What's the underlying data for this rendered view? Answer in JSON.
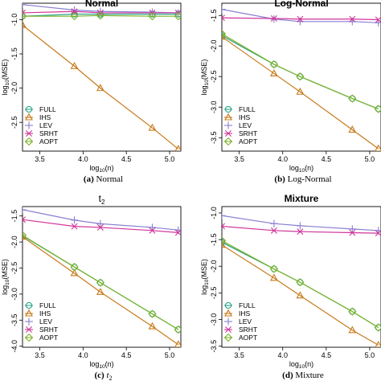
{
  "figure": {
    "methods": [
      "FULL",
      "IHS",
      "LEV",
      "SRHT",
      "AOPT"
    ],
    "colors": {
      "FULL": "#2aa58a",
      "IHS": "#c87a1a",
      "LEV": "#8a7fd0",
      "SRHT": "#d0359a",
      "AOPT": "#7cb22a"
    },
    "markers": {
      "FULL": "circle",
      "IHS": "triangle",
      "LEV": "plus",
      "SRHT": "cross",
      "AOPT": "diamond"
    }
  },
  "chart_data": [
    {
      "type": "line",
      "title": "Normal",
      "caption_label": "(a)",
      "caption_text": "Normal",
      "xlabel": "log10(n)",
      "ylabel": "log10(MSE)",
      "xlim": [
        3.3,
        5.13
      ],
      "ylim": [
        -2.92,
        -0.76
      ],
      "xticks": [
        3.5,
        4.0,
        4.5,
        5.0
      ],
      "yticks": [
        -1.0,
        -1.5,
        -2.0,
        -2.5
      ],
      "x": [
        3.3,
        3.9,
        4.2,
        4.8,
        5.1
      ],
      "series": [
        {
          "name": "FULL",
          "values": [
            -0.95,
            -0.92,
            -0.92,
            -0.92,
            -0.92
          ]
        },
        {
          "name": "IHS",
          "values": [
            -1.08,
            -1.68,
            -2.0,
            -2.58,
            -2.89
          ]
        },
        {
          "name": "LEV",
          "values": [
            -0.78,
            -0.86,
            -0.88,
            -0.89,
            -0.9
          ]
        },
        {
          "name": "SRHT",
          "values": [
            -0.9,
            -0.88,
            -0.9,
            -0.9,
            -0.9
          ]
        },
        {
          "name": "AOPT",
          "values": [
            -0.95,
            -0.95,
            -0.94,
            -0.95,
            -0.95
          ]
        }
      ]
    },
    {
      "type": "line",
      "title": "Log-Normal",
      "caption_label": "(b)",
      "caption_text": "Log-Normal",
      "xlabel": "log10(n)",
      "ylabel": "log10(MSE)",
      "xlim": [
        3.3,
        5.13
      ],
      "ylim": [
        -3.72,
        -1.3
      ],
      "xticks": [
        3.5,
        4.0,
        4.5,
        5.0
      ],
      "yticks": [
        -1.5,
        -2.0,
        -2.5,
        -3.0,
        -3.5
      ],
      "x": [
        3.3,
        3.9,
        4.2,
        4.8,
        5.1
      ],
      "series": [
        {
          "name": "FULL",
          "values": [
            -1.83,
            -2.3,
            -2.5,
            -2.86,
            -3.03
          ]
        },
        {
          "name": "IHS",
          "values": [
            -1.85,
            -2.45,
            -2.75,
            -3.37,
            -3.68
          ]
        },
        {
          "name": "LEV",
          "values": [
            -1.4,
            -1.56,
            -1.6,
            -1.6,
            -1.62
          ]
        },
        {
          "name": "SRHT",
          "values": [
            -1.54,
            -1.55,
            -1.56,
            -1.56,
            -1.57
          ]
        },
        {
          "name": "AOPT",
          "values": [
            -1.8,
            -2.3,
            -2.5,
            -2.86,
            -3.03
          ]
        }
      ]
    },
    {
      "type": "line",
      "title": "t2",
      "caption_label": "(c)",
      "caption_text": "t2",
      "xlabel": "log10(n)",
      "ylabel": "log10(MSE)",
      "xlim": [
        3.3,
        5.13
      ],
      "ylim": [
        -4.02,
        -1.32
      ],
      "xticks": [
        3.5,
        4.0,
        4.5,
        5.0
      ],
      "yticks": [
        -1.5,
        -2.0,
        -2.5,
        -3.0,
        -3.5,
        -4.0
      ],
      "x": [
        3.3,
        3.9,
        4.2,
        4.8,
        5.1
      ],
      "series": [
        {
          "name": "FULL",
          "values": [
            -1.88,
            -2.48,
            -2.78,
            -3.38,
            -3.68
          ]
        },
        {
          "name": "IHS",
          "values": [
            -1.9,
            -2.6,
            -2.96,
            -3.62,
            -3.97
          ]
        },
        {
          "name": "LEV",
          "values": [
            -1.38,
            -1.58,
            -1.65,
            -1.72,
            -1.77
          ]
        },
        {
          "name": "SRHT",
          "values": [
            -1.57,
            -1.7,
            -1.72,
            -1.78,
            -1.82
          ]
        },
        {
          "name": "AOPT",
          "values": [
            -1.87,
            -2.48,
            -2.78,
            -3.38,
            -3.68
          ]
        }
      ]
    },
    {
      "type": "line",
      "title": "Mixture",
      "caption_label": "(d)",
      "caption_text": "Mixture",
      "xlabel": "log10(n)",
      "ylabel": "log10(MSE)",
      "xlim": [
        3.3,
        5.13
      ],
      "ylim": [
        -3.52,
        -0.88
      ],
      "xticks": [
        3.5,
        4.0,
        4.5,
        5.0
      ],
      "yticks": [
        -1.0,
        -1.5,
        -2.0,
        -2.5,
        -3.0,
        -3.5
      ],
      "x": [
        3.3,
        3.9,
        4.2,
        4.8,
        5.1
      ],
      "series": [
        {
          "name": "FULL",
          "values": [
            -1.55,
            -2.05,
            -2.3,
            -2.85,
            -3.15
          ]
        },
        {
          "name": "IHS",
          "values": [
            -1.6,
            -2.22,
            -2.55,
            -3.2,
            -3.48
          ]
        },
        {
          "name": "LEV",
          "values": [
            -1.05,
            -1.2,
            -1.24,
            -1.3,
            -1.33
          ]
        },
        {
          "name": "SRHT",
          "values": [
            -1.25,
            -1.33,
            -1.35,
            -1.37,
            -1.38
          ]
        },
        {
          "name": "AOPT",
          "values": [
            -1.52,
            -2.05,
            -2.3,
            -2.85,
            -3.15
          ]
        }
      ]
    }
  ]
}
